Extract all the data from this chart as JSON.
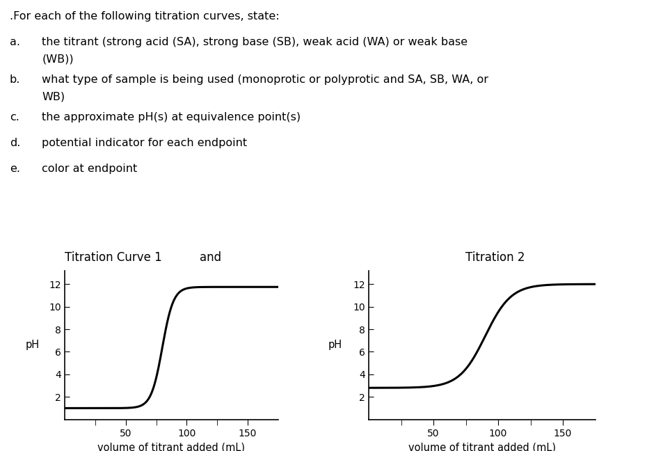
{
  "title_text": ".For each of the following titration curves, state:",
  "bullet_a_letter": "a.",
  "bullet_a_text": "the titrant (strong acid (SA), strong base (SB), weak acid (WA) or weak base",
  "bullet_a_text2": "(WB))",
  "bullet_b_letter": "b.",
  "bullet_b_text": "what type of sample is being used (monoprotic or polyprotic and SA, SB, WA, or",
  "bullet_b_text2": "WB)",
  "bullet_c_letter": "c.",
  "bullet_c_text": "the approximate pH(s) at equivalence point(s)",
  "bullet_d_letter": "d.",
  "bullet_d_text": "potential indicator for each endpoint",
  "bullet_e_letter": "e.",
  "bullet_e_text": "color at endpoint",
  "curve1_title": "Titration Curve 1",
  "and_text": "and",
  "curve2_title": "Titration 2",
  "xlabel": "volume of titrant added (mL)",
  "ylabel": "pH",
  "yticks": [
    2,
    4,
    6,
    8,
    10,
    12
  ],
  "xtick_labeled": [
    50,
    100,
    150
  ],
  "xtick_minor": [
    25,
    75,
    125
  ],
  "xlim": [
    0,
    175
  ],
  "ylim": [
    0,
    13.2
  ],
  "curve1_start_ph": 1.0,
  "curve1_end_ph": 11.75,
  "curve1_eq_point": 80,
  "curve1_steepness": 0.22,
  "curve2_start_ph": 2.8,
  "curve2_end_ph": 12.0,
  "curve2_eq_point": 90,
  "curve2_steepness": 0.1,
  "line_color": "#000000",
  "background_color": "#ffffff",
  "text_color": "#000000",
  "font_size_text": 11.5,
  "font_size_axis_label": 10.5,
  "font_size_tick": 10,
  "font_size_title_curve": 12
}
